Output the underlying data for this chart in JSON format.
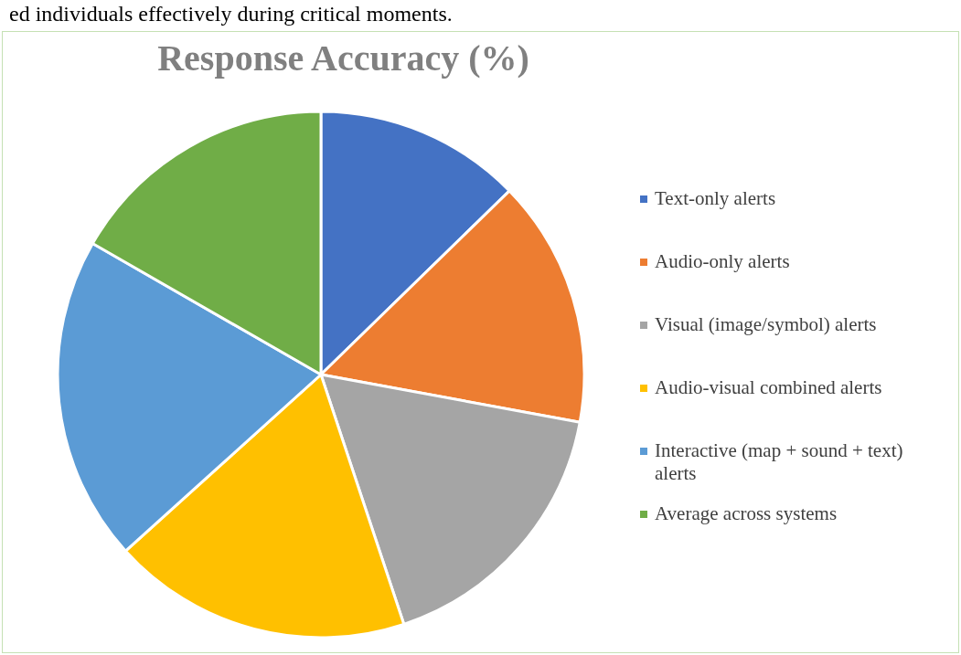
{
  "chart_data": {
    "type": "pie",
    "title": "Response Accuracy (%)",
    "annotations": [
      "ed individuals effectively during critical moments."
    ],
    "categories": [
      "Text-only alerts",
      "Audio-only alerts",
      "Visual (image/symbol) alerts",
      "Audio-visual combined alerts",
      "Interactive (map + sound + text) alerts",
      "Average across systems"
    ],
    "values": [
      12.7,
      15.2,
      17.0,
      18.4,
      20.0,
      16.7
    ],
    "colors": [
      "#4472c4",
      "#ed7d31",
      "#a5a5a5",
      "#ffc000",
      "#5b9bd5",
      "#70ad47"
    ],
    "legend": "right"
  }
}
